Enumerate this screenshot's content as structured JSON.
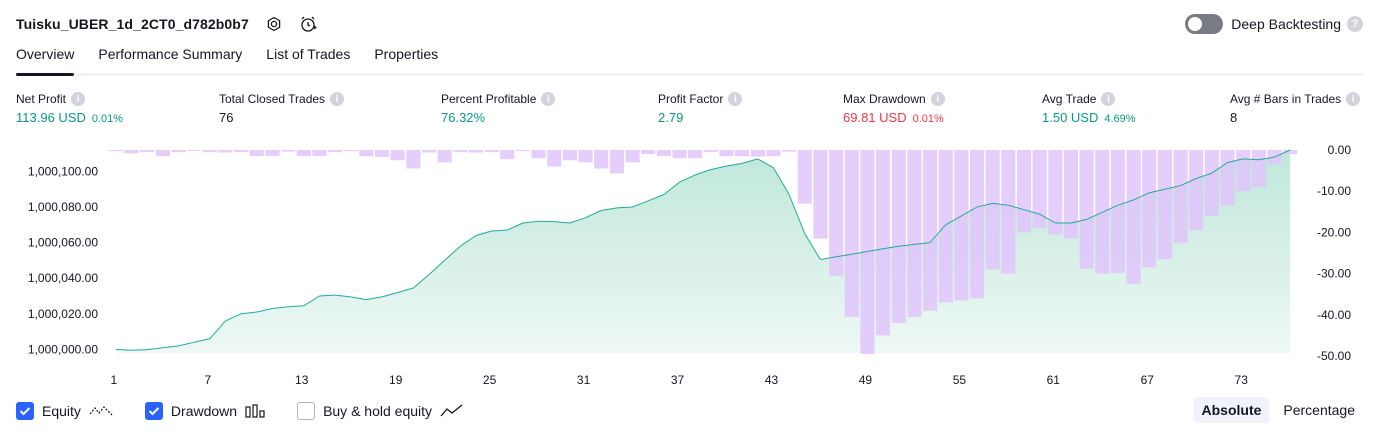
{
  "header": {
    "title": "Tuisku_UBER_1d_2CT0_d782b0b7",
    "settings_icon": "gear-icon",
    "alert_icon": "add-alert-icon"
  },
  "deep_backtesting": {
    "label": "Deep Backtesting",
    "enabled": false,
    "help_glyph": "?"
  },
  "tabs": [
    {
      "label": "Overview",
      "active": true
    },
    {
      "label": "Performance Summary",
      "active": false
    },
    {
      "label": "List of Trades",
      "active": false
    },
    {
      "label": "Properties",
      "active": false
    }
  ],
  "metrics": {
    "info_glyph": "i",
    "net_profit": {
      "label": "Net Profit",
      "value": "113.96 USD",
      "sub": "0.01%"
    },
    "total_closed_trades": {
      "label": "Total Closed Trades",
      "value": "76"
    },
    "percent_profitable": {
      "label": "Percent Profitable",
      "value": "76.32%"
    },
    "profit_factor": {
      "label": "Profit Factor",
      "value": "2.79"
    },
    "max_drawdown": {
      "label": "Max Drawdown",
      "value": "69.81 USD",
      "sub": "0.01%"
    },
    "avg_trade": {
      "label": "Avg Trade",
      "value": "1.50 USD",
      "sub": "4.69%"
    },
    "avg_bars": {
      "label": "Avg # Bars in Trades",
      "value": "8"
    }
  },
  "colors": {
    "positive": "#089981",
    "negative": "#f23645",
    "equity_line": "#22ab94",
    "equity_fill": "#d5efe7",
    "drawdown_bar": "#e1c4fb",
    "accent": "#2962ff"
  },
  "chart_data": {
    "type": "area",
    "x_ticks": [
      "1",
      "7",
      "13",
      "19",
      "25",
      "31",
      "37",
      "43",
      "49",
      "55",
      "61",
      "67",
      "73"
    ],
    "equity": {
      "name": "Equity",
      "ylim": [
        999998,
        1000112
      ],
      "y_ticks": [
        "1,000,000.00",
        "1,000,020.00",
        "1,000,040.00",
        "1,000,060.00",
        "1,000,080.00",
        "1,000,100.00"
      ],
      "values": [
        1000000.0,
        999999.5,
        999999.8,
        1000001,
        1000002,
        1000004,
        1000006,
        1000016,
        1000020,
        1000021,
        1000023,
        1000024,
        1000024.5,
        1000030,
        1000030.5,
        1000029.5,
        1000028,
        1000029.5,
        1000032,
        1000034.5,
        1000042,
        1000050,
        1000058,
        1000064,
        1000066.5,
        1000067,
        1000071,
        1000072,
        1000071.8,
        1000071,
        1000074,
        1000078,
        1000079.5,
        1000080,
        1000083.5,
        1000087,
        1000094,
        1000098,
        1000101,
        1000103,
        1000104.5,
        1000107,
        1000102,
        1000087,
        1000065,
        1000050.5,
        1000052,
        1000053.5,
        1000055,
        1000056.5,
        1000058,
        1000059,
        1000060,
        1000070,
        1000075,
        1000080,
        1000082,
        1000081,
        1000078.5,
        1000076,
        1000071,
        1000071,
        1000073,
        1000077,
        1000081,
        1000084,
        1000088,
        1000090,
        1000092,
        1000096,
        1000099,
        1000105,
        1000107,
        1000106.5,
        1000108,
        1000112
      ]
    },
    "drawdown": {
      "name": "Drawdown",
      "ylim": [
        -50,
        0
      ],
      "y_ticks": [
        "0.00",
        "-10.00",
        "-20.00",
        "-30.00",
        "-40.00",
        "-50.00"
      ],
      "values": [
        -0.3,
        -0.8,
        -0.5,
        -1.5,
        -0.5,
        -0.2,
        -0.5,
        -0.6,
        -0.5,
        -1.5,
        -1.4,
        -0.4,
        -1.5,
        -1.5,
        -0.5,
        -0.3,
        -1.5,
        -1.7,
        -2.5,
        -4.5,
        -0.6,
        -3.0,
        -0.5,
        -0.6,
        -0.5,
        -2.2,
        -0.3,
        -2.0,
        -4.0,
        -2.5,
        -3.0,
        -4.5,
        -5.7,
        -3.0,
        -1.0,
        -1.5,
        -2.0,
        -2.0,
        -0.5,
        -1.5,
        -1.5,
        -1.6,
        -1.5,
        -0.4,
        -13.0,
        -21.5,
        -30.5,
        -40.5,
        -49.5,
        -45.0,
        -42.0,
        -40.5,
        -39.0,
        -37.0,
        -36.5,
        -36.0,
        -29.0,
        -30.0,
        -20.0,
        -19.0,
        -20.5,
        -21.5,
        -28.8,
        -30.0,
        -29.8,
        -32.5,
        -28.5,
        -26.5,
        -22.5,
        -19.5,
        -16.0,
        -13.5,
        -10.0,
        -9.0,
        -3.5,
        -1.0
      ]
    }
  },
  "legend": [
    {
      "label": "Equity",
      "checked": true
    },
    {
      "label": "Drawdown",
      "checked": true
    },
    {
      "label": "Buy & hold equity",
      "checked": false
    }
  ],
  "view_modes": [
    {
      "label": "Absolute",
      "active": true
    },
    {
      "label": "Percentage",
      "active": false
    }
  ]
}
